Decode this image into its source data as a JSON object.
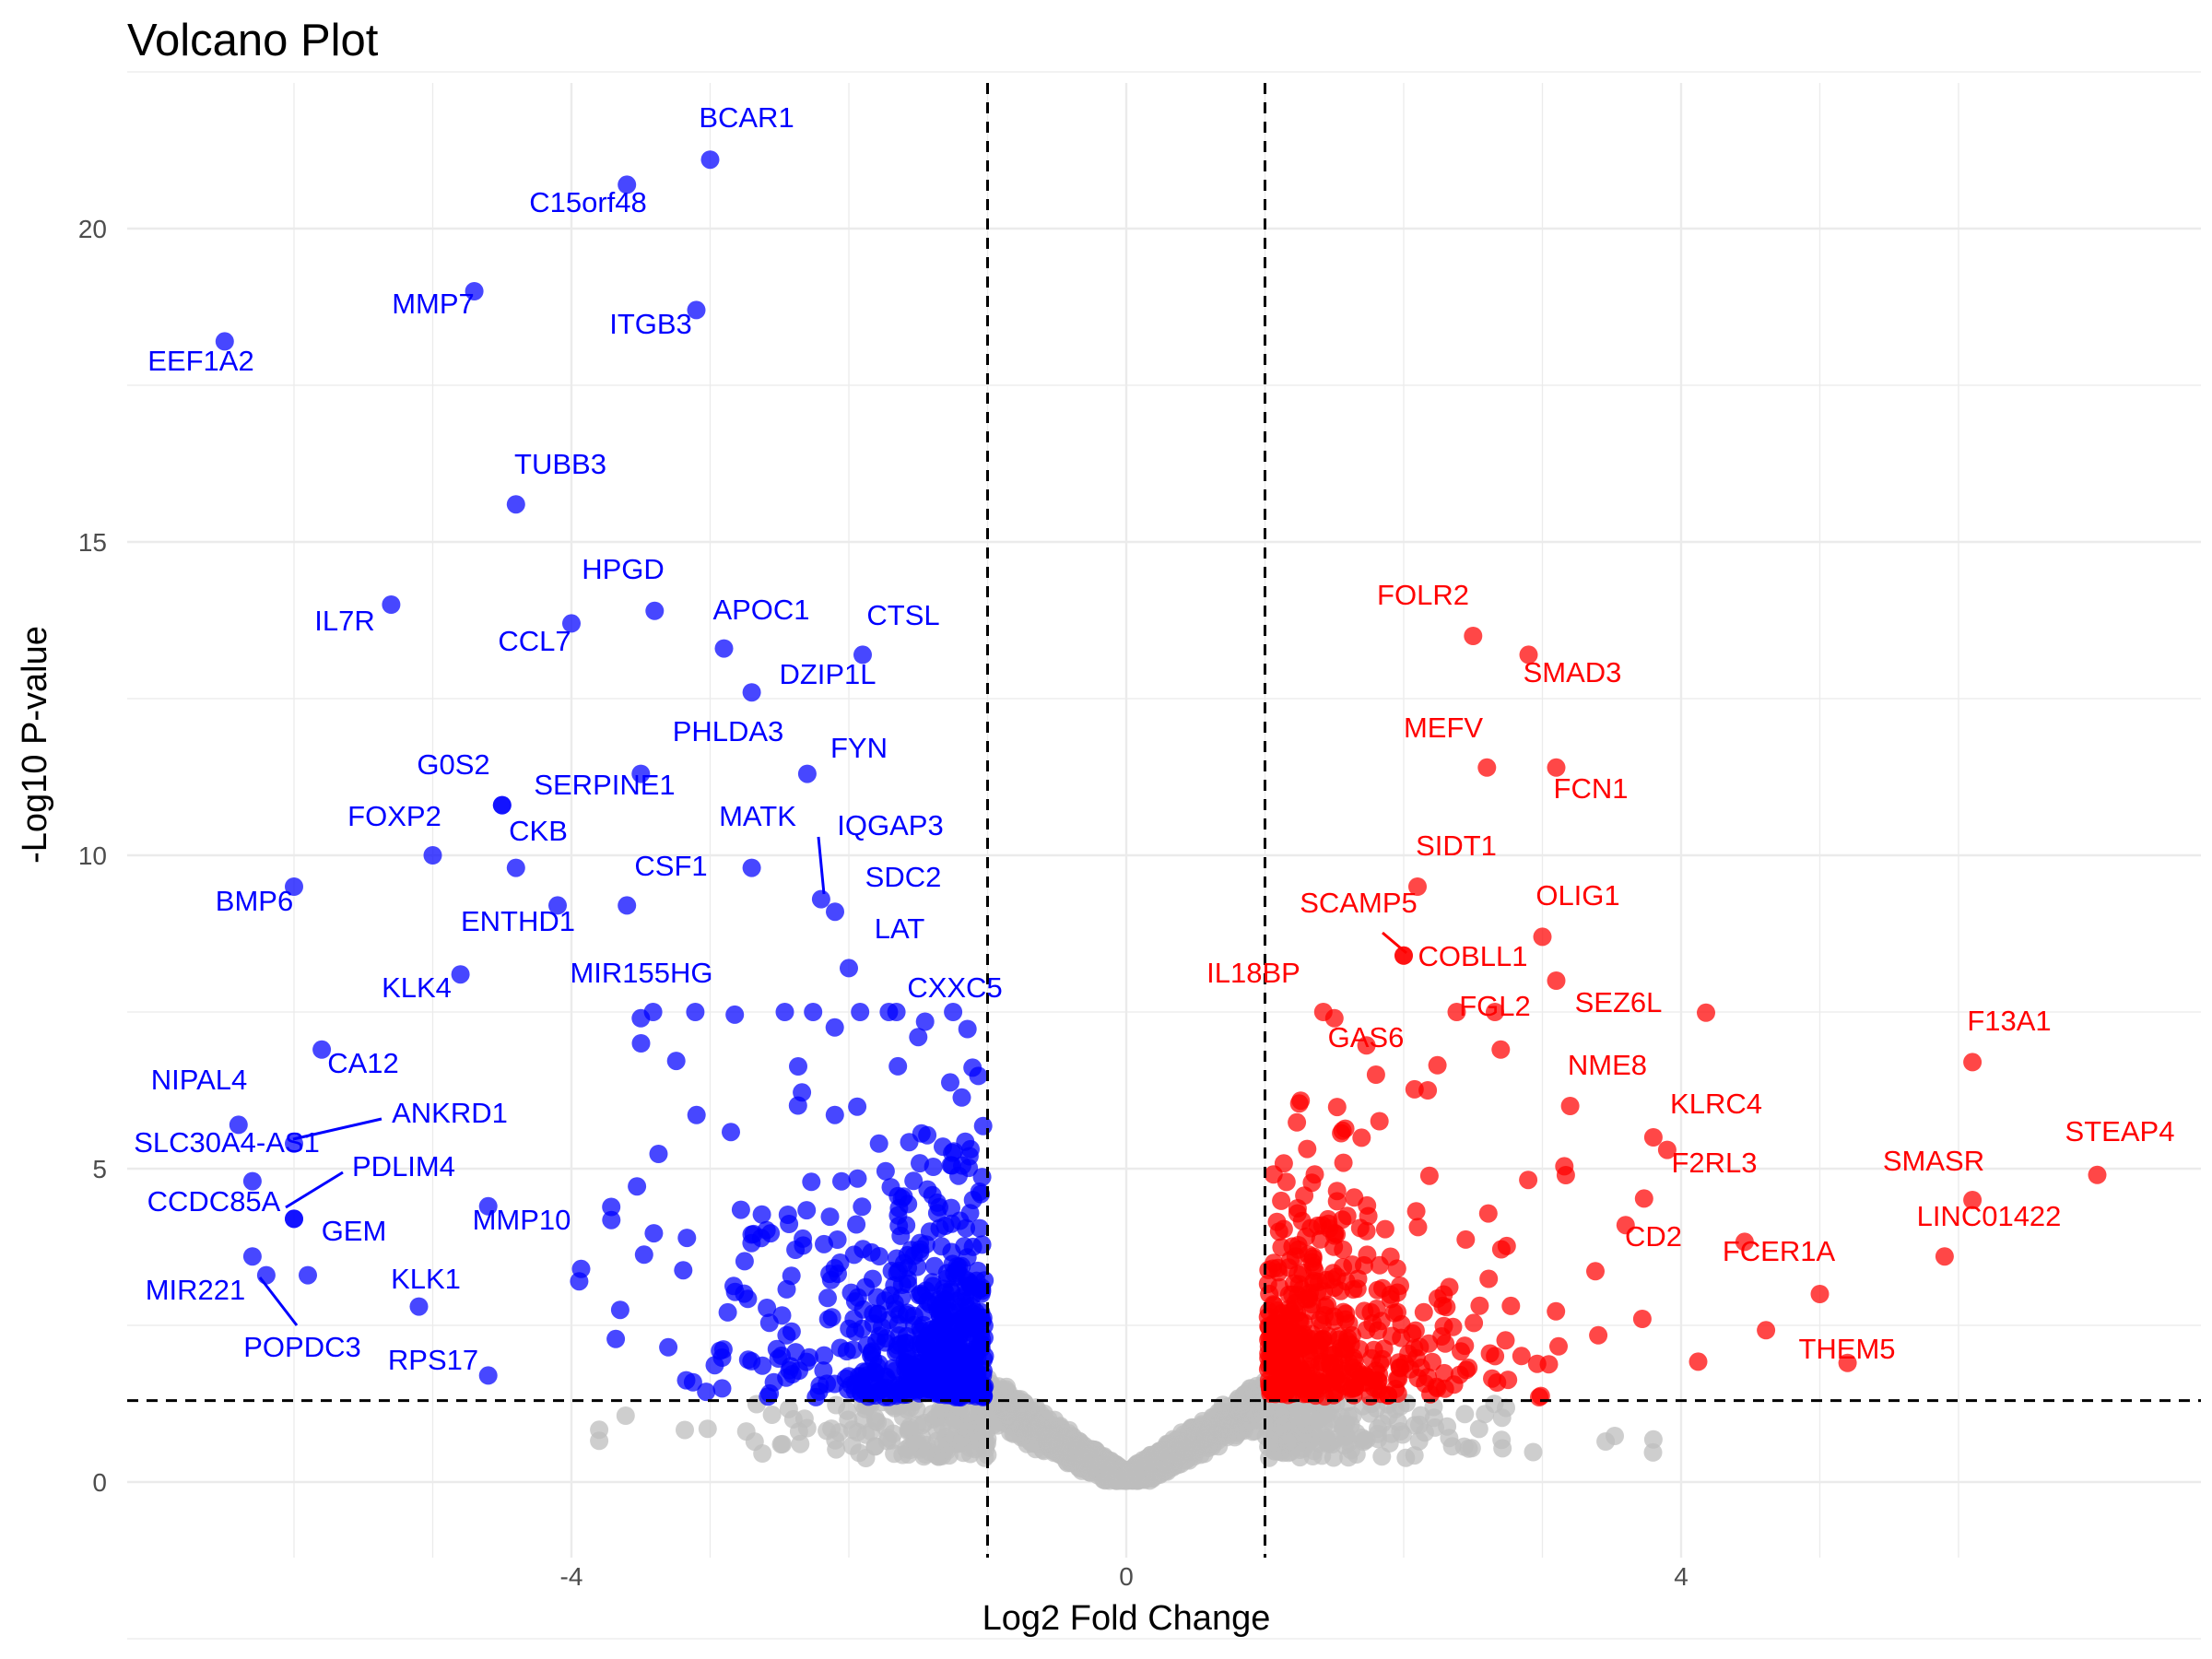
{
  "chart_data": {
    "type": "scatter",
    "title": "Volcano Plot",
    "xlabel": "Log2 Fold Change",
    "ylabel": "-Log10 P-value",
    "xlim": [
      -7.2,
      7.2
    ],
    "ylim": [
      -1.1,
      22.3
    ],
    "x_ticks": [
      -4,
      0,
      4
    ],
    "y_ticks": [
      0,
      5,
      10,
      15,
      20
    ],
    "thresholds": {
      "log2fc": [
        -1,
        1
      ],
      "neg_log10_p": 1.3
    },
    "grid": true,
    "legend": "none",
    "colors": {
      "down": "#0000ff",
      "up": "#ff0000",
      "ns": "#bebebe",
      "grid": "#ebebeb"
    },
    "labeled_points": [
      {
        "gene": "BCAR1",
        "x": -3.0,
        "y": 21.1,
        "group": "down"
      },
      {
        "gene": "C15orf48",
        "x": -3.6,
        "y": 20.7,
        "group": "down"
      },
      {
        "gene": "MMP7",
        "x": -4.7,
        "y": 19.0,
        "group": "down"
      },
      {
        "gene": "ITGB3",
        "x": -3.1,
        "y": 18.7,
        "group": "down"
      },
      {
        "gene": "EEF1A2",
        "x": -6.5,
        "y": 18.2,
        "group": "down"
      },
      {
        "gene": "TUBB3",
        "x": -4.4,
        "y": 15.6,
        "group": "down"
      },
      {
        "gene": "IL7R",
        "x": -5.3,
        "y": 14.0,
        "group": "down"
      },
      {
        "gene": "HPGD",
        "x": -3.4,
        "y": 13.9,
        "group": "down"
      },
      {
        "gene": "CCL7",
        "x": -4.0,
        "y": 13.7,
        "group": "down"
      },
      {
        "gene": "APOC1",
        "x": -2.9,
        "y": 13.3,
        "group": "down"
      },
      {
        "gene": "CTSL",
        "x": -1.9,
        "y": 13.2,
        "group": "down"
      },
      {
        "gene": "DZIP1L",
        "x": -2.7,
        "y": 12.6,
        "group": "down"
      },
      {
        "gene": "PHLDA3",
        "x": -3.5,
        "y": 11.3,
        "group": "down"
      },
      {
        "gene": "FYN",
        "x": -2.3,
        "y": 11.3,
        "group": "down"
      },
      {
        "gene": "G0S2",
        "x": -4.5,
        "y": 10.8,
        "group": "down"
      },
      {
        "gene": "SERPINE1",
        "x": -4.5,
        "y": 10.8,
        "group": "down"
      },
      {
        "gene": "FOXP2",
        "x": -5.0,
        "y": 10.0,
        "group": "down"
      },
      {
        "gene": "CKB",
        "x": -4.4,
        "y": 9.8,
        "group": "down"
      },
      {
        "gene": "MATK",
        "x": -2.7,
        "y": 9.8,
        "group": "down"
      },
      {
        "gene": "IQGAP3",
        "x": -2.2,
        "y": 9.3,
        "group": "down"
      },
      {
        "gene": "BMP6",
        "x": -6.0,
        "y": 9.5,
        "group": "down"
      },
      {
        "gene": "CSF1",
        "x": -3.6,
        "y": 9.2,
        "group": "down"
      },
      {
        "gene": "SDC2",
        "x": -2.1,
        "y": 9.1,
        "group": "down"
      },
      {
        "gene": "ENTHD1",
        "x": -4.1,
        "y": 9.2,
        "group": "down"
      },
      {
        "gene": "LAT",
        "x": -2.0,
        "y": 8.2,
        "group": "down"
      },
      {
        "gene": "KLK4",
        "x": -4.8,
        "y": 8.1,
        "group": "down"
      },
      {
        "gene": "MIR155HG",
        "x": -3.5,
        "y": 7.4,
        "group": "down"
      },
      {
        "gene": "CXXC5",
        "x": -1.5,
        "y": 7.1,
        "group": "down"
      },
      {
        "gene": "CA12",
        "x": -5.8,
        "y": 6.9,
        "group": "down"
      },
      {
        "gene": "NIPAL4",
        "x": -6.4,
        "y": 5.7,
        "group": "down"
      },
      {
        "gene": "ANKRD1",
        "x": -6.0,
        "y": 5.4,
        "group": "down"
      },
      {
        "gene": "SLC30A4-AS1",
        "x": -6.3,
        "y": 4.8,
        "group": "down"
      },
      {
        "gene": "PDLIM4",
        "x": -6.0,
        "y": 4.2,
        "group": "down"
      },
      {
        "gene": "CCDC85A",
        "x": -6.0,
        "y": 4.2,
        "group": "down"
      },
      {
        "gene": "GEM",
        "x": -5.9,
        "y": 3.3,
        "group": "down"
      },
      {
        "gene": "MMP10",
        "x": -4.6,
        "y": 4.4,
        "group": "down"
      },
      {
        "gene": "MIR221",
        "x": -6.3,
        "y": 3.6,
        "group": "down"
      },
      {
        "gene": "KLK1",
        "x": -5.1,
        "y": 2.8,
        "group": "down"
      },
      {
        "gene": "POPDC3",
        "x": -6.2,
        "y": 3.3,
        "group": "down"
      },
      {
        "gene": "RPS17",
        "x": -4.6,
        "y": 1.7,
        "group": "down"
      },
      {
        "gene": "FOLR2",
        "x": 2.5,
        "y": 13.5,
        "group": "up"
      },
      {
        "gene": "SMAD3",
        "x": 2.9,
        "y": 13.2,
        "group": "up"
      },
      {
        "gene": "MEFV",
        "x": 2.6,
        "y": 11.4,
        "group": "up"
      },
      {
        "gene": "FCN1",
        "x": 3.1,
        "y": 11.4,
        "group": "up"
      },
      {
        "gene": "SIDT1",
        "x": 2.1,
        "y": 9.5,
        "group": "up"
      },
      {
        "gene": "SCAMP5",
        "x": 2.0,
        "y": 8.4,
        "group": "up"
      },
      {
        "gene": "OLIG1",
        "x": 3.0,
        "y": 8.7,
        "group": "up"
      },
      {
        "gene": "COBLL1",
        "x": 2.0,
        "y": 8.4,
        "group": "up"
      },
      {
        "gene": "IL18BP",
        "x": 1.5,
        "y": 7.4,
        "group": "up"
      },
      {
        "gene": "SEZ6L",
        "x": 3.1,
        "y": 8.0,
        "group": "up"
      },
      {
        "gene": "FGL2",
        "x": 2.7,
        "y": 6.9,
        "group": "up"
      },
      {
        "gene": "GAS6",
        "x": 1.8,
        "y": 6.5,
        "group": "up"
      },
      {
        "gene": "NME8",
        "x": 3.2,
        "y": 6.0,
        "group": "up"
      },
      {
        "gene": "F13A1",
        "x": 6.1,
        "y": 6.7,
        "group": "up"
      },
      {
        "gene": "KLRC4",
        "x": 3.9,
        "y": 5.3,
        "group": "up"
      },
      {
        "gene": "STEAP4",
        "x": 7.0,
        "y": 4.9,
        "group": "up"
      },
      {
        "gene": "F2RL3",
        "x": 3.8,
        "y": 5.5,
        "group": "up"
      },
      {
        "gene": "SMASR",
        "x": 6.1,
        "y": 4.5,
        "group": "up"
      },
      {
        "gene": "LINC01422",
        "x": 5.9,
        "y": 3.6,
        "group": "up"
      },
      {
        "gene": "CD2",
        "x": 3.6,
        "y": 4.1,
        "group": "up"
      },
      {
        "gene": "FCER1A",
        "x": 5.0,
        "y": 3.0,
        "group": "up"
      },
      {
        "gene": "THEM5",
        "x": 5.2,
        "y": 1.9,
        "group": "up"
      }
    ],
    "labels": {
      "BCAR1": "BCAR1",
      "C15orf48": "C15orf48",
      "MMP7": "MMP7",
      "ITGB3": "ITGB3",
      "EEF1A2": "EEF1A2",
      "TUBB3": "TUBB3",
      "IL7R": "IL7R",
      "HPGD": "HPGD",
      "CCL7": "CCL7",
      "APOC1": "APOC1",
      "CTSL": "CTSL",
      "DZIP1L": "DZIP1L",
      "PHLDA3": "PHLDA3",
      "FYN": "FYN",
      "G0S2": "G0S2",
      "SERPINE1": "SERPINE1",
      "FOXP2": "FOXP2",
      "CKB": "CKB",
      "MATK": "MATK",
      "IQGAP3": "IQGAP3",
      "BMP6": "BMP6",
      "CSF1": "CSF1",
      "SDC2": "SDC2",
      "ENTHD1": "ENTHD1",
      "LAT": "LAT",
      "KLK4": "KLK4",
      "MIR155HG": "MIR155HG",
      "CXXC5": "CXXC5",
      "CA12": "CA12",
      "NIPAL4": "NIPAL4",
      "ANKRD1": "ANKRD1",
      "SLC30A4-AS1": "SLC30A4-AS1",
      "PDLIM4": "PDLIM4",
      "CCDC85A": "CCDC85A",
      "GEM": "GEM",
      "MMP10": "MMP10",
      "MIR221": "MIR221",
      "KLK1": "KLK1",
      "POPDC3": "POPDC3",
      "RPS17": "RPS17",
      "FOLR2": "FOLR2",
      "SMAD3": "SMAD3",
      "MEFV": "MEFV",
      "FCN1": "FCN1",
      "SIDT1": "SIDT1",
      "SCAMP5": "SCAMP5",
      "OLIG1": "OLIG1",
      "COBLL1": "COBLL1",
      "IL18BP": "IL18BP",
      "SEZ6L": "SEZ6L",
      "FGL2": "FGL2",
      "GAS6": "GAS6",
      "NME8": "NME8",
      "F13A1": "F13A1",
      "KLRC4": "KLRC4",
      "STEAP4": "STEAP4",
      "F2RL3": "F2RL3",
      "SMASR": "SMASR",
      "LINC01422": "LINC01422",
      "CD2": "CD2",
      "FCER1A": "FCER1A",
      "THEM5": "THEM5"
    }
  }
}
